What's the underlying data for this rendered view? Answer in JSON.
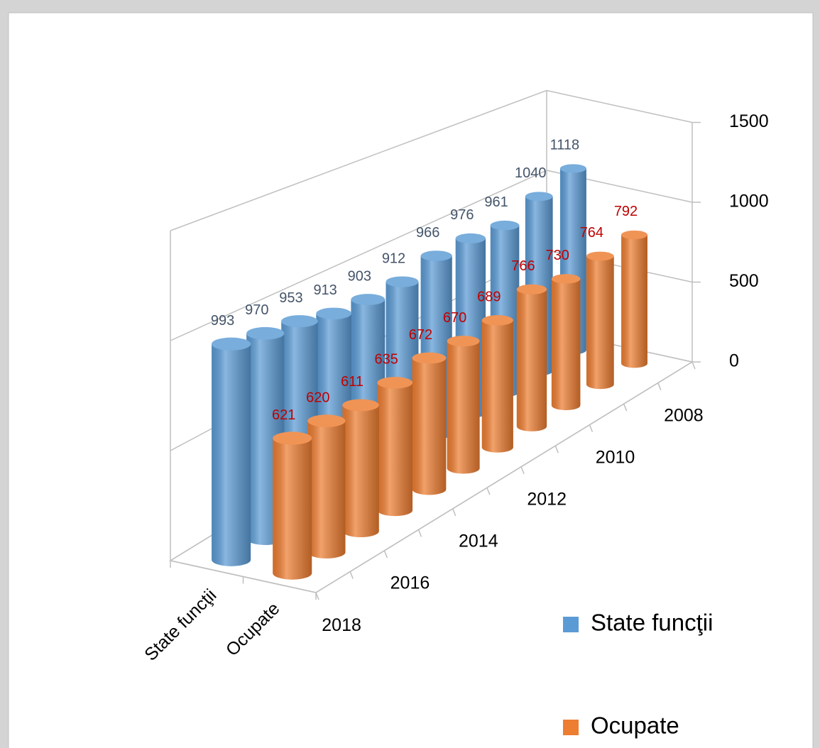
{
  "chart_data": {
    "type": "bar3d",
    "categories": [
      "2018",
      null,
      "2016",
      null,
      "2014",
      null,
      "2012",
      null,
      "2010",
      null,
      "2008"
    ],
    "series": [
      {
        "name": "State funcţii",
        "color": "#5b9bd5",
        "label_color": "#44546a",
        "values": [
          993,
          970,
          953,
          913,
          903,
          912,
          966,
          976,
          961,
          1040,
          1118
        ]
      },
      {
        "name": "Ocupate",
        "color": "#ed7d31",
        "label_color": "#c00000",
        "values": [
          621,
          620,
          611,
          635,
          672,
          670,
          689,
          766,
          730,
          764,
          792
        ]
      }
    ],
    "ylim": [
      0,
      1500
    ],
    "yticks": [
      0,
      500,
      1000,
      1500
    ],
    "grid": true,
    "legend": "right"
  }
}
